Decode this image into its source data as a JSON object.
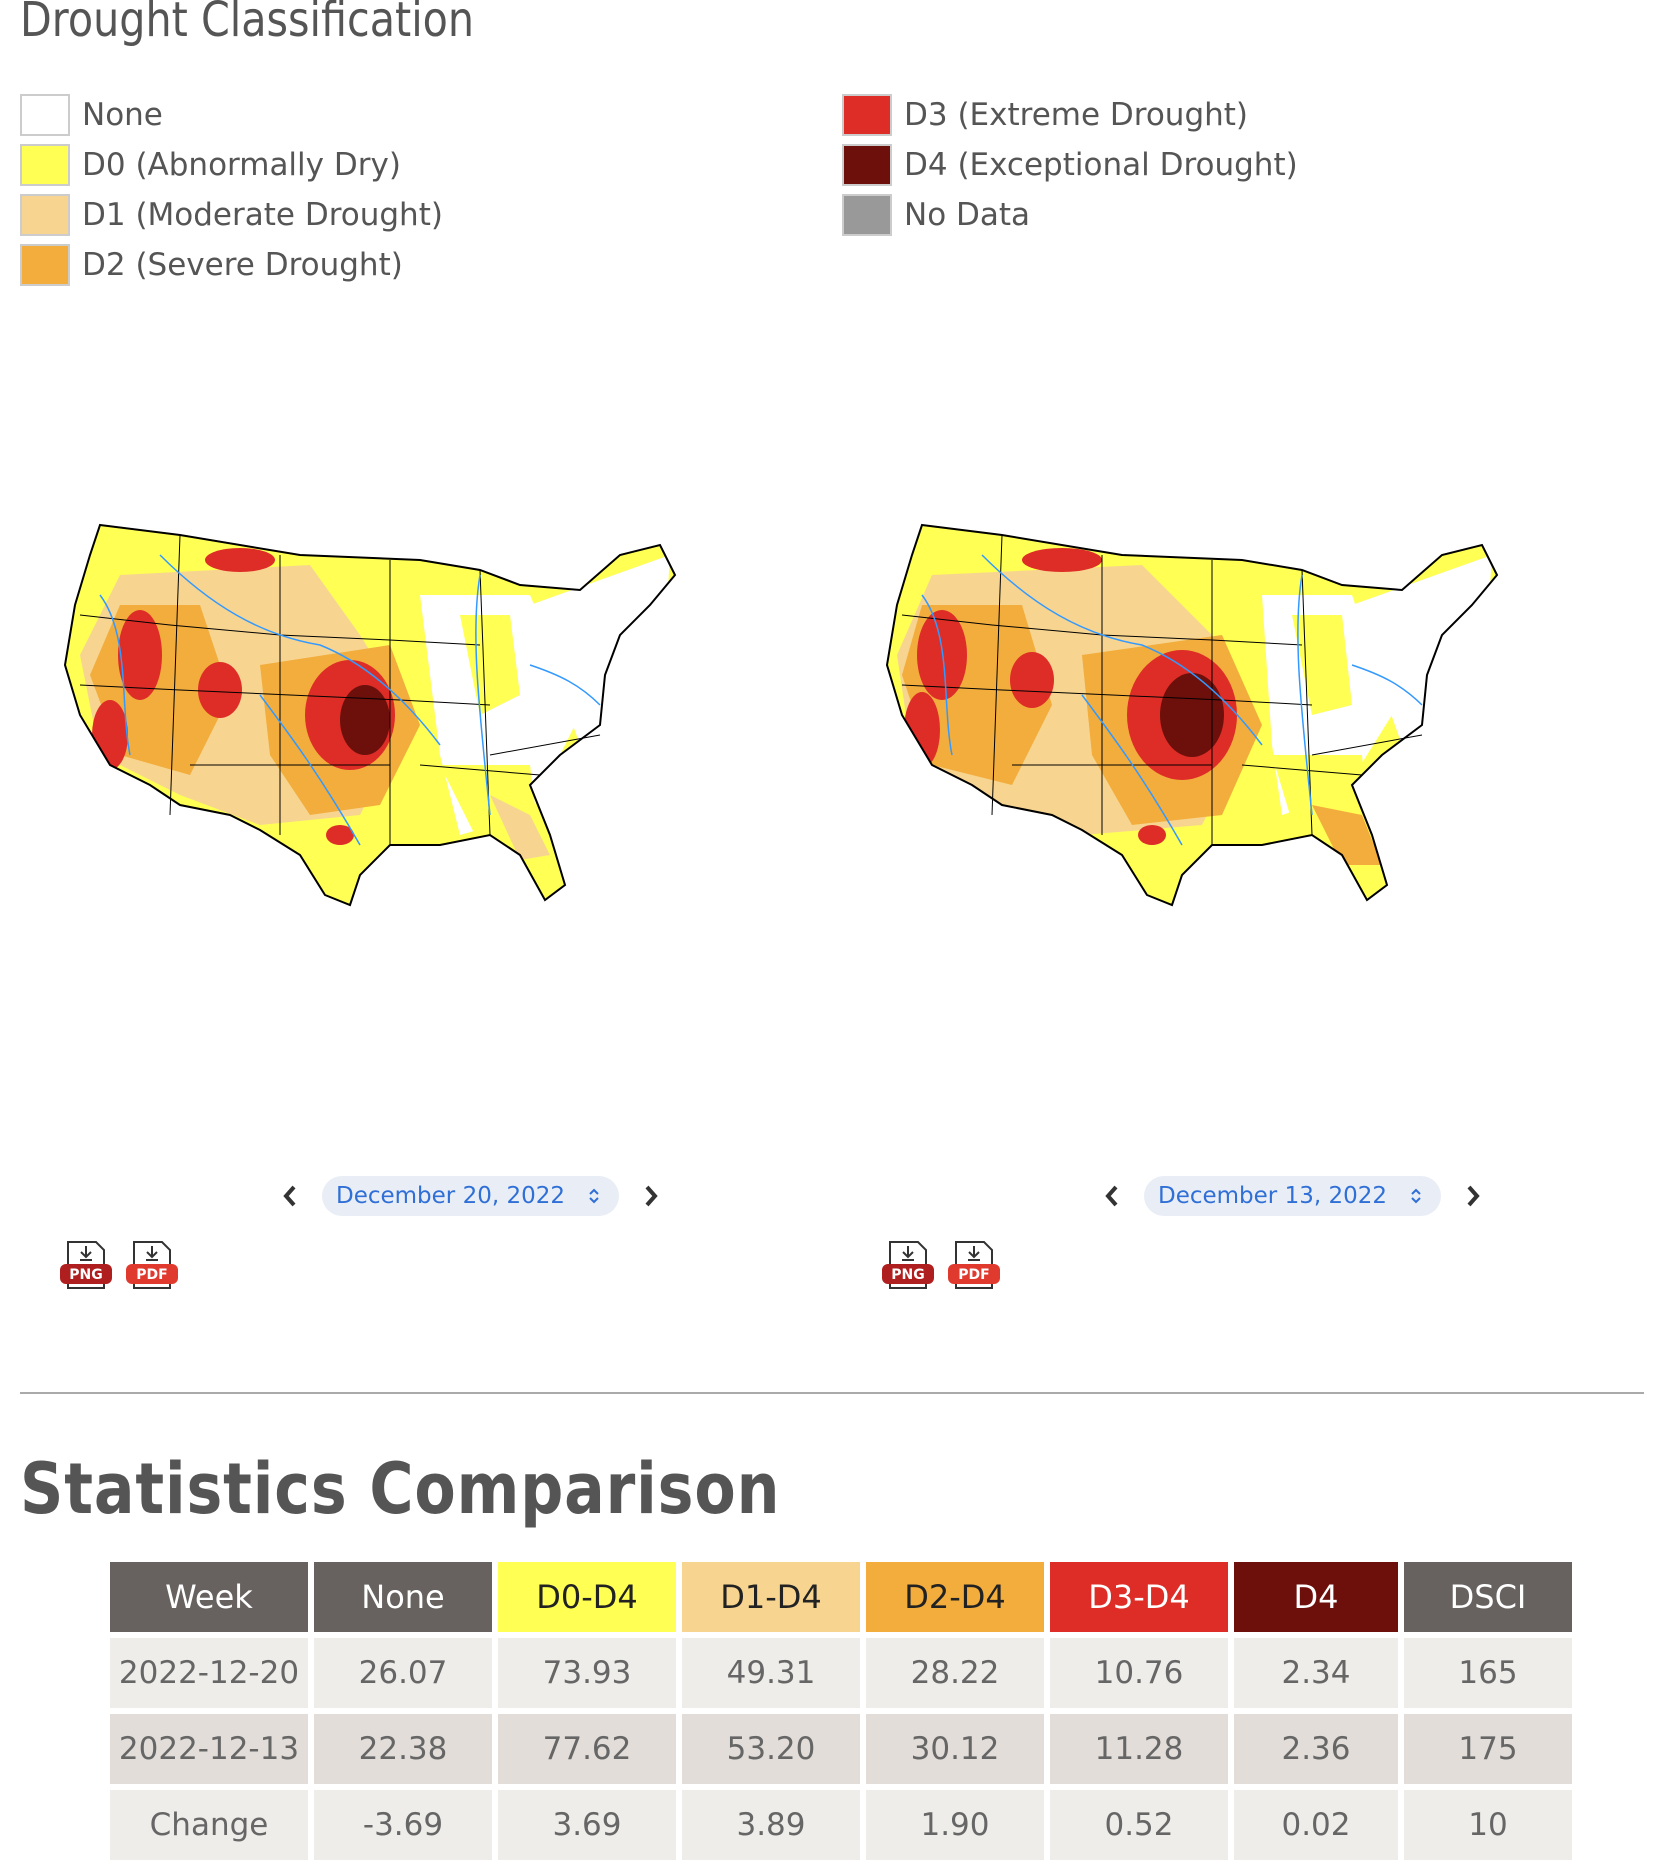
{
  "titles": {
    "drought_classification": "Drought Classification",
    "statistics_comparison": "Statistics Comparison"
  },
  "legend": {
    "left": [
      {
        "label": "None",
        "color": "#ffffff"
      },
      {
        "label": "D0 (Abnormally Dry)",
        "color": "#ffff54"
      },
      {
        "label": "D1 (Moderate Drought)",
        "color": "#f7d590"
      },
      {
        "label": "D2 (Severe Drought)",
        "color": "#f2ad3d"
      }
    ],
    "right": [
      {
        "label": "D3 (Extreme Drought)",
        "color": "#de2d26"
      },
      {
        "label": "D4 (Exceptional Drought)",
        "color": "#6d100c"
      },
      {
        "label": "No Data",
        "color": "#999999"
      }
    ]
  },
  "maps": [
    {
      "date": "December 20, 2022"
    },
    {
      "date": "December 13, 2022"
    }
  ],
  "downloads": {
    "png": "PNG",
    "pdf": "PDF"
  },
  "table": {
    "headers": [
      {
        "label": "Week",
        "bg": "#67625f",
        "fg": "#ffffff"
      },
      {
        "label": "None",
        "bg": "#67625f",
        "fg": "#ffffff"
      },
      {
        "label": "D0-D4",
        "bg": "#ffff54",
        "fg": "#222222"
      },
      {
        "label": "D1-D4",
        "bg": "#f7d590",
        "fg": "#222222"
      },
      {
        "label": "D2-D4",
        "bg": "#f2ad3d",
        "fg": "#222222"
      },
      {
        "label": "D3-D4",
        "bg": "#de2d26",
        "fg": "#ffffff"
      },
      {
        "label": "D4",
        "bg": "#6d100c",
        "fg": "#ffffff"
      },
      {
        "label": "DSCI",
        "bg": "#67625f",
        "fg": "#ffffff"
      }
    ],
    "rows": [
      [
        "2022-12-20",
        "26.07",
        "73.93",
        "49.31",
        "28.22",
        "10.76",
        "2.34",
        "165"
      ],
      [
        "2022-12-13",
        "22.38",
        "77.62",
        "53.20",
        "30.12",
        "11.28",
        "2.36",
        "175"
      ],
      [
        "Change",
        "-3.69",
        "3.69",
        "3.89",
        "1.90",
        "0.52",
        "0.02",
        "10"
      ]
    ]
  }
}
